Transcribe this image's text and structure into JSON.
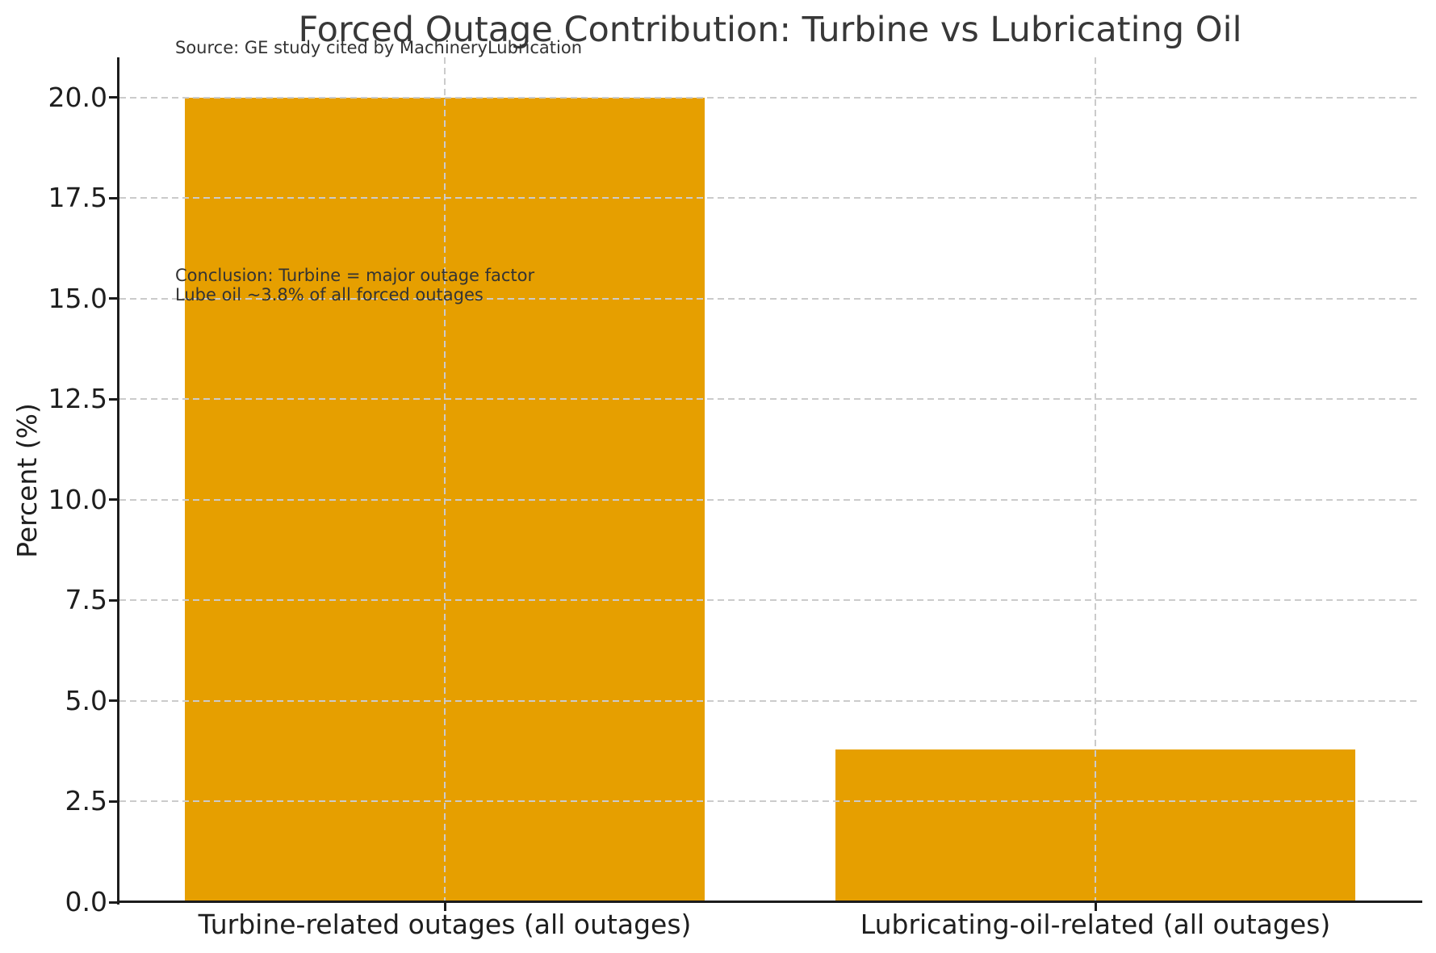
{
  "chart_data": {
    "type": "bar",
    "title": "Forced Outage Contribution: Turbine vs Lubricating Oil",
    "subtitle": "Source: GE study cited by MachineryLubrication",
    "categories": [
      "Turbine-related outages (all outages)",
      "Lubricating-oil-related (all outages)"
    ],
    "values": [
      20.0,
      3.8
    ],
    "xlabel": "",
    "ylabel": "Percent (%)",
    "ylim": [
      0,
      21
    ],
    "yticks": [
      0,
      2.5,
      5,
      7.5,
      10,
      12.5,
      15,
      17.5,
      20
    ],
    "ytick_labels": [
      "0.0",
      "2.5",
      "5.0",
      "7.5",
      "10.0",
      "12.5",
      "15.0",
      "17.5",
      "20.0"
    ],
    "grid": true,
    "grid_style": "dashed",
    "legend": false,
    "bar_color": "#E69F00",
    "grid_color": "#cbcbcb",
    "axis_color": "#1c1c1c",
    "annotation_lines": [
      "Conclusion: Turbine = major outage factor",
      "Lube oil ~3.8% of all forced outages"
    ]
  }
}
